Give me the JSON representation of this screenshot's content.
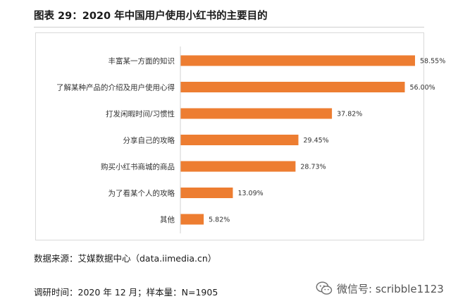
{
  "title": "图表 29：2020 年中国用户使用小红书的主要目的",
  "chart_data": {
    "type": "bar",
    "orientation": "horizontal",
    "categories": [
      "丰富某一方面的知识",
      "了解某种产品的介绍及用户使用心得",
      "打发闲暇时间/习惯性",
      "分享自己的攻略",
      "购买小红书商城的商品",
      "为了看某个人的攻略",
      "其他"
    ],
    "values": [
      58.55,
      56.0,
      37.82,
      29.45,
      28.73,
      13.09,
      5.82
    ],
    "value_labels": [
      "58.55%",
      "56.00%",
      "37.82%",
      "29.45%",
      "28.73%",
      "13.09%",
      "5.82%"
    ],
    "bar_color": "#ED7D31",
    "xlim": [
      0,
      58.55
    ],
    "grid": false,
    "legend": "none"
  },
  "source": "数据来源：艾媒数据中心（data.iimedia.cn）",
  "survey": "调研时间：2020 年 12 月；样本量：N=1905",
  "watermark": {
    "icon": "wechat-icon",
    "text": "微信号: scribble1123"
  }
}
